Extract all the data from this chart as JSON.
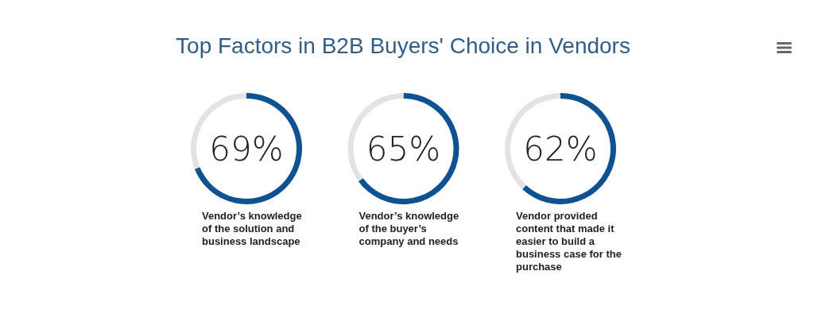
{
  "chart_data": [
    {
      "type": "donut",
      "title": "Top Factors in B2B Buyers' Choice in Vendors",
      "categories": [
        null,
        null
      ],
      "values": [
        69,
        31
      ],
      "colors": [
        "#0b5394",
        "#e3e3e3"
      ],
      "value_labels": [
        "69%",
        null
      ],
      "annotations": [
        "Vendor’s knowledge of the solution and business landscape"
      ]
    },
    {
      "type": "donut",
      "categories": [
        null,
        null
      ],
      "values": [
        65,
        35
      ],
      "colors": [
        "#0b5394",
        "#e3e3e3"
      ],
      "value_labels": [
        "65%",
        null
      ],
      "annotations": [
        "Vendor’s knowledge of the buyer’s company and needs"
      ]
    },
    {
      "type": "donut",
      "categories": [
        null,
        null
      ],
      "values": [
        62,
        38
      ],
      "colors": [
        "#0b5394",
        "#e3e3e3"
      ],
      "value_labels": [
        "62%",
        null
      ],
      "annotations": [
        "Vendor provided content that made it easier to build a business case for the purchase"
      ]
    }
  ]
}
